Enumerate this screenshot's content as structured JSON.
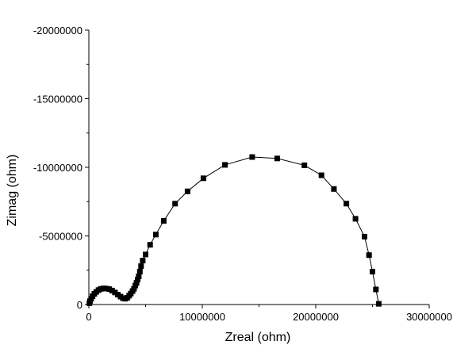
{
  "chart_data": {
    "type": "scatter",
    "title": "",
    "xlabel": "Zreal (ohm)",
    "ylabel": "Zimag (ohm)",
    "xlim": [
      0,
      30000000
    ],
    "ylim": [
      0,
      -20000000
    ],
    "y_axis_inverted": true,
    "grid": false,
    "legend": "none",
    "x_ticks": [
      {
        "value": 0,
        "label": "0"
      },
      {
        "value": 10000000,
        "label": "10000000"
      },
      {
        "value": 20000000,
        "label": "20000000"
      },
      {
        "value": 30000000,
        "label": "30000000"
      }
    ],
    "y_ticks": [
      {
        "value": 0,
        "label": "0"
      },
      {
        "value": -5000000,
        "label": "-5000000"
      },
      {
        "value": -10000000,
        "label": "-10000000"
      },
      {
        "value": -15000000,
        "label": "-15000000"
      },
      {
        "value": -20000000,
        "label": "-20000000"
      }
    ],
    "marker": "square",
    "marker_color": "#000000",
    "line_color": "#000000",
    "series": [
      {
        "x": [
          50000,
          100000,
          200000,
          330000,
          480000,
          650000,
          850000,
          1050000,
          1300000,
          1550000,
          1800000,
          2050000,
          2300000,
          2550000,
          2800000,
          3000000,
          3200000,
          3400000,
          3550000,
          3700000,
          3850000,
          3980000,
          4100000,
          4200000,
          4300000,
          4400000,
          4500000,
          4600000,
          4750000,
          5000000,
          5400000,
          5900000,
          6600000,
          7600000,
          8700000,
          10100000,
          12000000,
          14400000,
          16600000,
          19000000,
          20500000,
          21600000,
          22700000,
          23500000,
          24300000,
          24700000,
          25000000,
          25300000,
          25550000
        ],
        "y": [
          -100000,
          -250000,
          -420000,
          -600000,
          -780000,
          -920000,
          -1050000,
          -1140000,
          -1180000,
          -1160000,
          -1120000,
          -1020000,
          -880000,
          -720000,
          -580000,
          -460000,
          -420000,
          -500000,
          -650000,
          -800000,
          -980000,
          -1150000,
          -1380000,
          -1580000,
          -1820000,
          -2050000,
          -2400000,
          -2800000,
          -3200000,
          -3650000,
          -4350000,
          -5100000,
          -6100000,
          -7350000,
          -8250000,
          -9200000,
          -10180000,
          -10750000,
          -10650000,
          -10150000,
          -9420000,
          -8420000,
          -7350000,
          -6250000,
          -4950000,
          -3600000,
          -2400000,
          -1100000,
          -50000
        ]
      }
    ]
  }
}
